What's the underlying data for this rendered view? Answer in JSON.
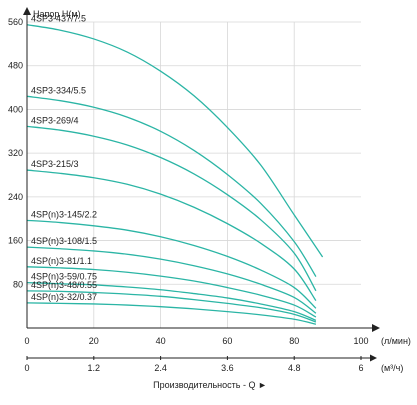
{
  "chart_data": {
    "type": "line",
    "ylabel": "Напор H(м)",
    "xlabel_primary_unit": "(л/мин)",
    "xlabel_secondary_unit": "(м³/ч)",
    "xaxis_title": "Производительность - Q ►",
    "xlim": [
      0,
      100
    ],
    "ylim": [
      0,
      560
    ],
    "xticks": [
      0,
      20,
      40,
      60,
      80,
      100
    ],
    "xticks_secondary_labels": [
      "0",
      "1.2",
      "2.4",
      "3.6",
      "4.8",
      "6"
    ],
    "yticks": [
      80,
      160,
      240,
      320,
      400,
      480,
      560
    ],
    "grid": true,
    "line_color": "#2bb5a5",
    "x": [
      0,
      10,
      20,
      30,
      40,
      50,
      60,
      70,
      80,
      84.5,
      86.5,
      88.5
    ],
    "series": [
      {
        "name": "4SP3-437/7.5",
        "values": [
          555,
          545,
          529,
          505,
          470,
          425,
          367,
          298,
          207,
          null,
          null,
          130
        ]
      },
      {
        "name": "4SP3-334/5.5",
        "values": [
          424,
          416,
          404,
          386,
          360,
          325,
          281,
          228,
          158,
          null,
          94,
          null
        ]
      },
      {
        "name": "4SP3-269/4",
        "values": [
          369,
          362,
          351,
          335,
          312,
          282,
          244,
          198,
          137,
          null,
          68,
          null
        ]
      },
      {
        "name": "4SP3-215/3",
        "values": [
          289,
          283,
          275,
          263,
          245,
          221,
          191,
          155,
          108,
          null,
          50,
          null
        ]
      },
      {
        "name": "4SP(n)3-145/2.2",
        "values": [
          197,
          193,
          187,
          179,
          167,
          151,
          131,
          106,
          74,
          null,
          36,
          null
        ]
      },
      {
        "name": "4SP(n)3-108/1.5",
        "values": [
          148,
          145,
          141,
          135,
          126,
          114,
          99,
          80,
          56,
          null,
          27,
          null
        ]
      },
      {
        "name": "4SP(n)3-81/1.1",
        "values": [
          112,
          110,
          107,
          102,
          95,
          86,
          74,
          60,
          42,
          null,
          20,
          null
        ]
      },
      {
        "name": "4SP(n)3-59/0.75",
        "values": [
          83,
          81,
          79,
          75,
          70,
          63,
          55,
          44,
          30,
          null,
          14,
          null
        ]
      },
      {
        "name": "4SP(n)3-48/0.55",
        "values": [
          68,
          67,
          65,
          62,
          58,
          52,
          45,
          37,
          25,
          null,
          11,
          null
        ]
      },
      {
        "name": "4SP(n)3-32/0.37",
        "values": [
          46,
          45,
          44,
          42,
          39,
          35,
          30,
          24,
          16,
          null,
          7,
          null
        ]
      }
    ]
  }
}
